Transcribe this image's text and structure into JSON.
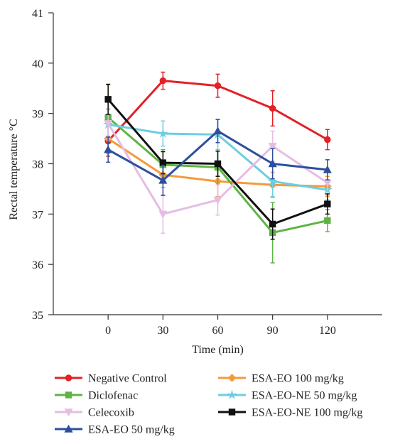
{
  "chart_data": {
    "type": "line",
    "title": "",
    "xlabel": "Time (min)",
    "ylabel": "Rectal temperature °C",
    "x": [
      0,
      30,
      60,
      90,
      120
    ],
    "xlim": [
      -30,
      150
    ],
    "ylim": [
      35,
      41
    ],
    "yticks": [
      35,
      36,
      37,
      38,
      39,
      40,
      41
    ],
    "grid": false,
    "legend_position": "bottom",
    "series": [
      {
        "name": "Negative Control",
        "color": "#e32126",
        "marker": "circle",
        "values": [
          38.45,
          39.65,
          39.55,
          39.1,
          38.48
        ],
        "errors": [
          0.3,
          0.17,
          0.23,
          0.35,
          0.2
        ]
      },
      {
        "name": "ESA-EO 100 mg/kg",
        "color": "#f39b3b",
        "marker": "diamond",
        "values": [
          38.5,
          37.78,
          37.65,
          37.58,
          37.55
        ],
        "errors": [
          0.3,
          0.25,
          0.3,
          0.25,
          0.2
        ]
      },
      {
        "name": "Diclofenac",
        "color": "#5db443",
        "marker": "square",
        "values": [
          38.92,
          37.98,
          37.93,
          36.63,
          36.87
        ],
        "errors": [
          0.65,
          0.3,
          0.35,
          0.6,
          0.22
        ]
      },
      {
        "name": "ESA-EO-NE 50 mg/kg",
        "color": "#6ecde2",
        "marker": "star",
        "values": [
          38.78,
          38.6,
          38.58,
          37.65,
          37.48
        ],
        "errors": [
          0.3,
          0.25,
          0.3,
          0.3,
          0.2
        ]
      },
      {
        "name": "Celecoxib",
        "color": "#e5bde3",
        "marker": "triangle-down",
        "values": [
          38.8,
          37.0,
          37.28,
          38.35,
          37.62
        ],
        "errors": [
          0.3,
          0.38,
          0.3,
          0.3,
          0.25
        ]
      },
      {
        "name": "ESA-EO-NE 100 mg/kg",
        "color": "#111111",
        "marker": "square",
        "values": [
          39.28,
          38.02,
          38.0,
          36.8,
          37.2
        ],
        "errors": [
          0.3,
          0.22,
          0.25,
          0.3,
          0.2
        ]
      },
      {
        "name": "ESA-EO 50 mg/kg",
        "color": "#2d4f9e",
        "marker": "triangle-up",
        "values": [
          38.28,
          37.67,
          38.65,
          38.0,
          37.88
        ],
        "errors": [
          0.25,
          0.3,
          0.23,
          0.3,
          0.2
        ]
      }
    ]
  }
}
